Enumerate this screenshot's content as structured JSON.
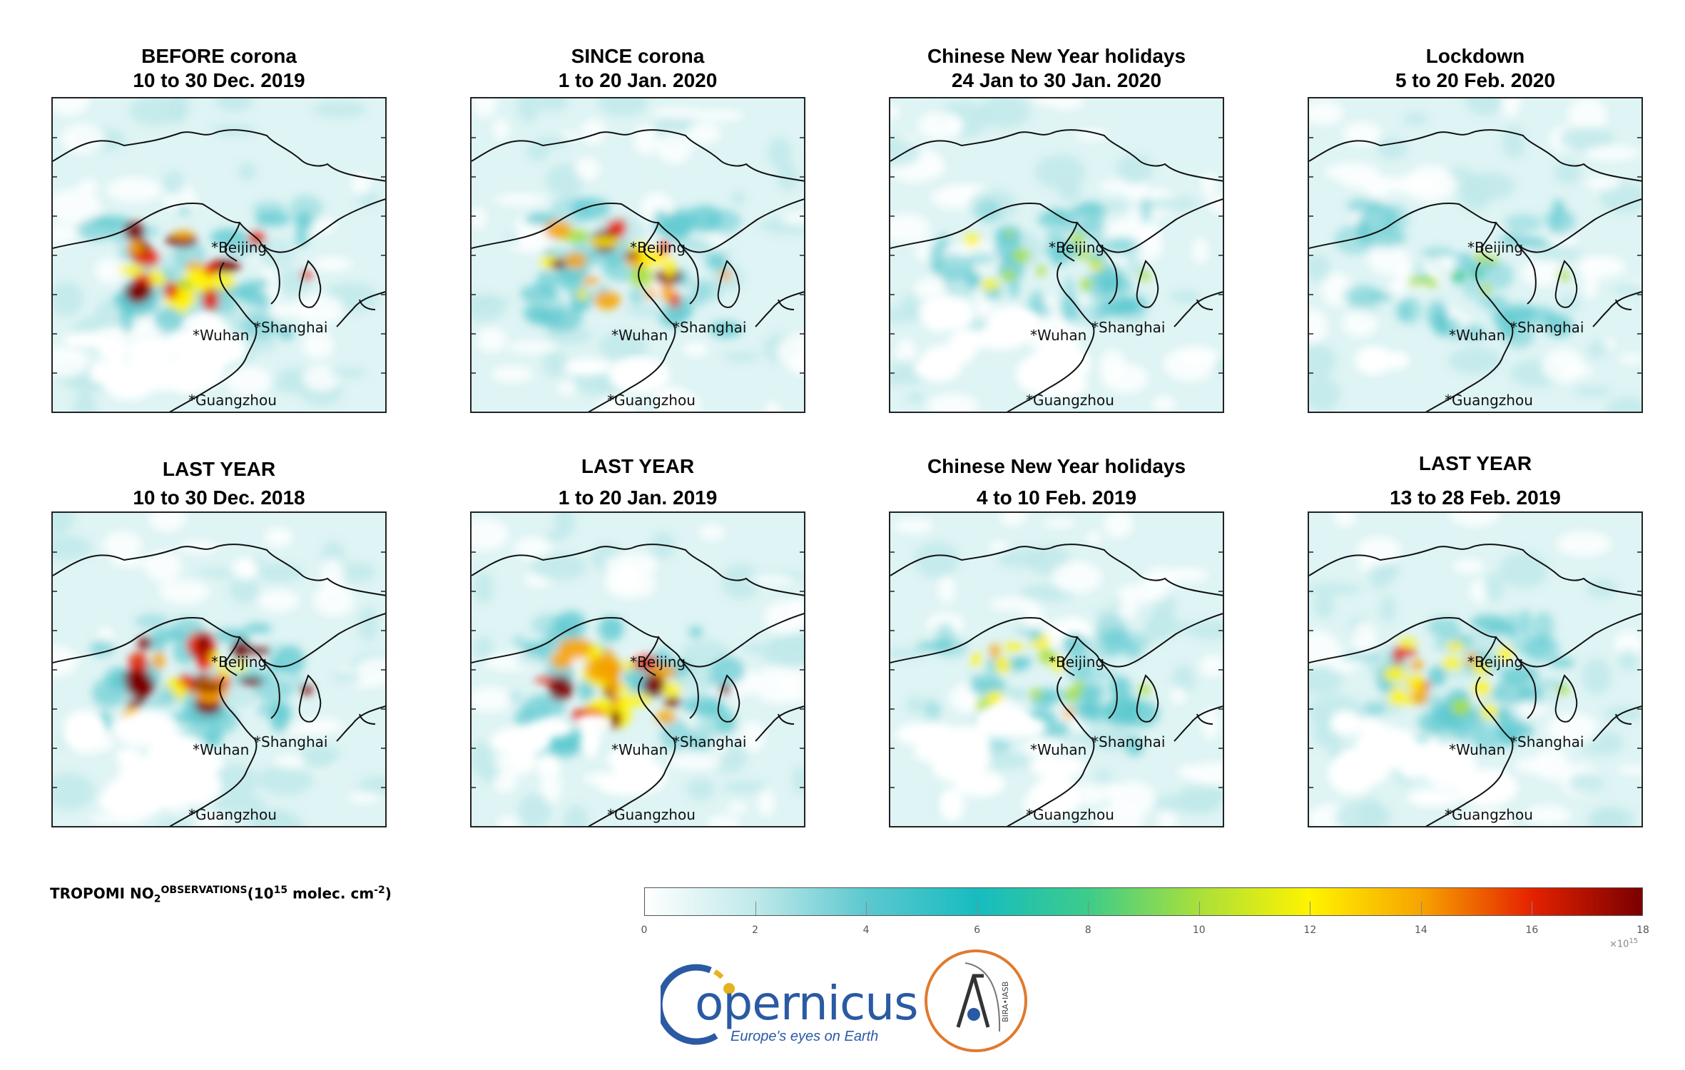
{
  "panels": [
    {
      "title_line1": "BEFORE corona",
      "title_line2": "10 to 30 Dec. 2019",
      "intensity": 0.85,
      "south_cloud": 0.9
    },
    {
      "title_line1": "SINCE corona",
      "title_line2": "1 to 20 Jan. 2020",
      "intensity": 0.8,
      "south_cloud": 0.1
    },
    {
      "title_line1": "Chinese New Year holidays",
      "title_line2": "24 Jan to 30 Jan. 2020",
      "intensity": 0.35,
      "south_cloud": 0.8
    },
    {
      "title_line1": "Lockdown",
      "title_line2": "5 to 20 Feb. 2020",
      "intensity": 0.25,
      "south_cloud": 0.1
    },
    {
      "title_line1": "LAST YEAR",
      "title_line2": "10 to 30 Dec. 2018",
      "intensity": 0.95,
      "south_cloud": 1.0
    },
    {
      "title_line1": "LAST YEAR",
      "title_line2": "1 to 20 Jan. 2019",
      "intensity": 1.0,
      "south_cloud": 0.6
    },
    {
      "title_line1": "Chinese New Year holidays",
      "title_line2": "4 to 10 Feb. 2019",
      "intensity": 0.45,
      "south_cloud": 0.7
    },
    {
      "title_line1": "LAST YEAR",
      "title_line2": "13 to 28 Feb. 2019",
      "intensity": 0.6,
      "south_cloud": 0.8
    }
  ],
  "cities": [
    "*Beijing",
    "*Wuhan",
    "*Shanghai",
    "*Guangzhou"
  ],
  "colorbar": {
    "label_main": "TROPOMI NO",
    "label_sub": "2",
    "label_obs": "OBSERVATIONS",
    "label_units_open": "(10",
    "label_units_exp": "15",
    "label_units_mid": " molec. cm",
    "label_units_exp2": "-2",
    "label_units_close": ")",
    "ticks": [
      "0",
      "2",
      "4",
      "6",
      "8",
      "10",
      "12",
      "14",
      "16",
      "18"
    ],
    "min": 0,
    "max": 18,
    "multiplier_base": "×10",
    "multiplier_exp": "15",
    "colors": [
      "#ffffff",
      "#bfe9ea",
      "#5cc8cf",
      "#16bcc0",
      "#3dcc8a",
      "#a9e03a",
      "#fff300",
      "#f7a400",
      "#e52200",
      "#7a0000"
    ]
  },
  "logos": {
    "copernicus_word": "opernicus",
    "copernicus_tagline": "Europe's eyes on Earth",
    "bira_text": "BIRA•IASB"
  }
}
